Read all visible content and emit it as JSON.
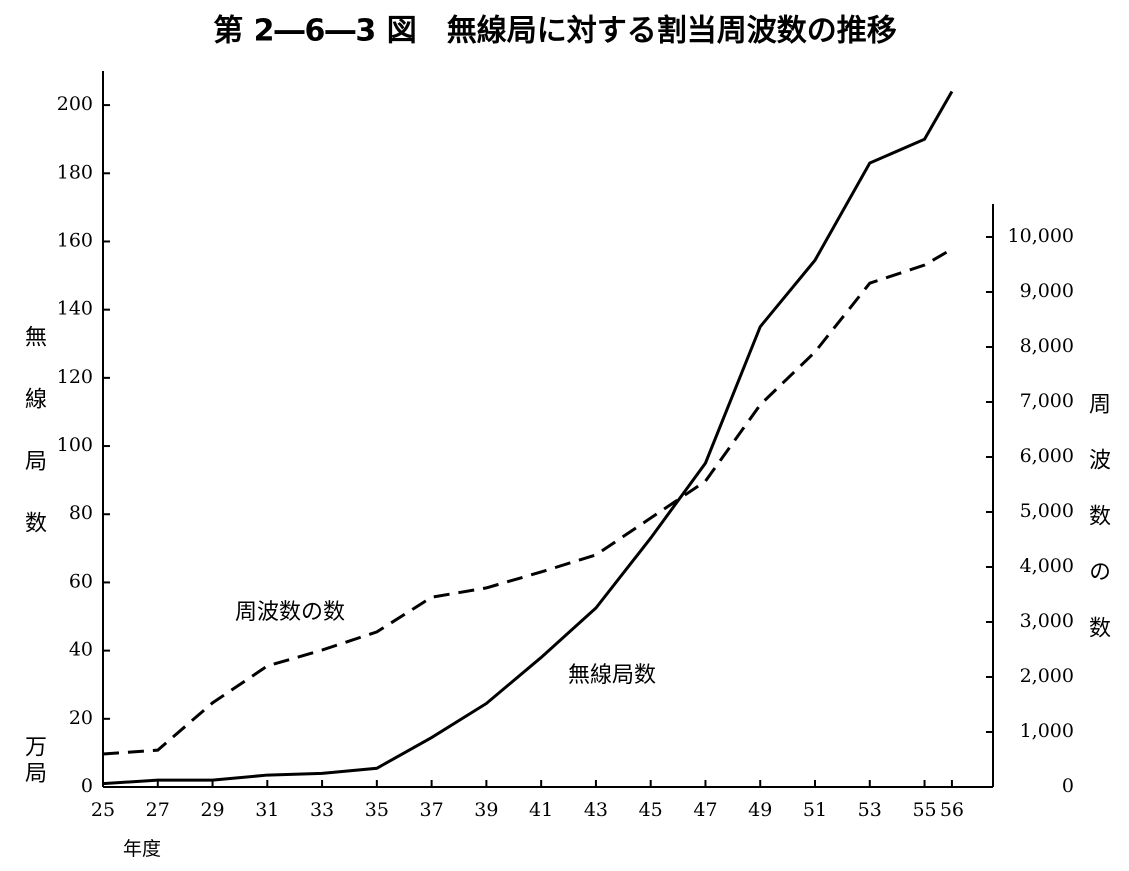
{
  "chart_data": {
    "type": "line",
    "title": "第 2―6―3 図　無線局に対する割当周波数の推移",
    "x_label": "年度",
    "y_label": "無線局数",
    "y_unit": "万局",
    "y2_label": "周波数の数",
    "x": [
      25,
      27,
      29,
      31,
      33,
      35,
      37,
      39,
      41,
      43,
      45,
      47,
      49,
      51,
      53,
      55,
      56
    ],
    "xlim": [
      25,
      57.5
    ],
    "xticks": [
      25,
      27,
      29,
      31,
      33,
      35,
      37,
      39,
      41,
      43,
      45,
      47,
      49,
      51,
      53,
      55,
      56
    ],
    "ylim": [
      0,
      210
    ],
    "yticks": [
      0,
      20,
      40,
      60,
      80,
      100,
      120,
      140,
      160,
      180,
      200
    ],
    "y2lim": [
      0,
      10600
    ],
    "y2ticks": [
      0,
      {
        "value": 1000,
        "label": "1,000"
      },
      {
        "value": 2000,
        "label": "2,000"
      },
      {
        "value": 3000,
        "label": "3,000"
      },
      {
        "value": 4000,
        "label": "4,000"
      },
      {
        "value": 5000,
        "label": "5,000"
      },
      {
        "value": 6000,
        "label": "6,000"
      },
      {
        "value": 7000,
        "label": "7,000"
      },
      {
        "value": 8000,
        "label": "8,000"
      },
      {
        "value": 9000,
        "label": "9,000"
      },
      {
        "value": 10000,
        "label": "10,000"
      }
    ],
    "series": [
      {
        "name": "無線局数",
        "color": "#000000",
        "line_style": "solid",
        "values": [
          1,
          2,
          2,
          3.5,
          4,
          5.5,
          14.5,
          24.5,
          38,
          52.5,
          73,
          95,
          135,
          154.5,
          183,
          190,
          204
        ]
      },
      {
        "name": "周波数の数",
        "color": "#000000",
        "line_style": "dashed",
        "axis": "y2",
        "values": [
          600,
          670,
          1530,
          2200,
          2490,
          2820,
          3450,
          3620,
          3910,
          4220,
          4890,
          5560,
          6950,
          7910,
          9160,
          9490,
          9780
        ]
      }
    ]
  }
}
